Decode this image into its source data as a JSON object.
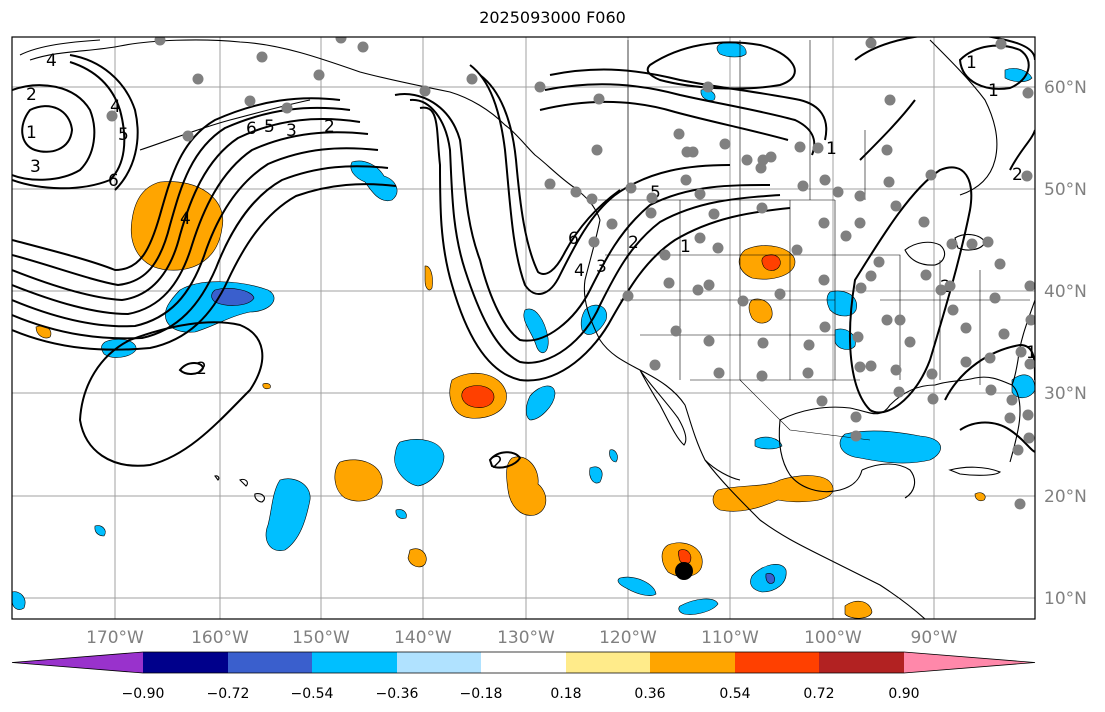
{
  "title": "2025093000 F060",
  "map": {
    "lon_labels": [
      "170°W",
      "160°W",
      "150°W",
      "140°W",
      "130°W",
      "120°W",
      "110°W",
      "100°W",
      "90°W"
    ],
    "lat_labels": [
      "60°N",
      "50°N",
      "40°N",
      "30°N",
      "20°N",
      "10°N"
    ],
    "grid": true,
    "contour_labels": [
      "4",
      "2",
      "1",
      "3",
      "4",
      "5",
      "6",
      "6",
      "5",
      "3",
      "2",
      "4",
      "2",
      "2",
      "1",
      "6",
      "4",
      "3",
      "2",
      "5",
      "1",
      "2",
      "1",
      "2",
      "1",
      "1"
    ],
    "station_marker_color": "#808080",
    "storm_marker_color": "#000000"
  },
  "colorbar": {
    "tick_labels": [
      "−0.90",
      "−0.72",
      "−0.54",
      "−0.36",
      "−0.18",
      "0.18",
      "0.36",
      "0.54",
      "0.72",
      "0.90"
    ],
    "colors": [
      "#9932cc",
      "#00008b",
      "#3a5fcd",
      "#00bfff",
      "#b0e2ff",
      "#ffffff",
      "#ffeb8a",
      "#ffa500",
      "#ff4000",
      "#b22222",
      "#ff88aa"
    ]
  }
}
